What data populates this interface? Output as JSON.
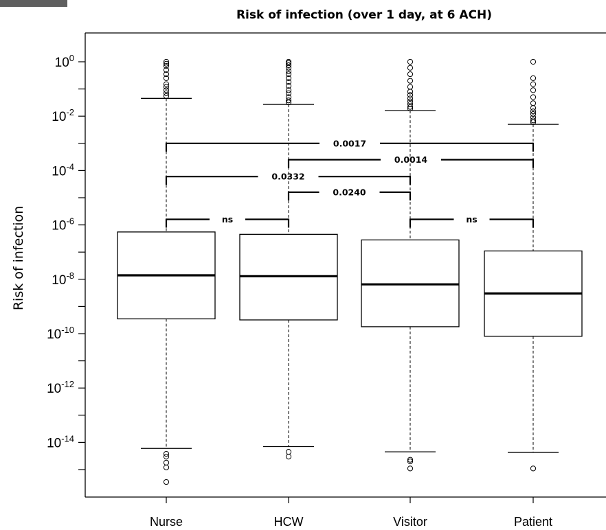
{
  "chart_data": {
    "type": "boxplot",
    "title": "Risk of infection (over 1 day, at 6 ACH)",
    "ylabel": "Risk of infection",
    "xlabel": "",
    "y_scale": "log10",
    "ylim": [
      1e-16,
      3
    ],
    "grid": false,
    "y_tick_base": "10",
    "y_tick_exponents": [
      "0",
      "-2",
      "-4",
      "-6",
      "-8",
      "-10",
      "-12",
      "-14"
    ],
    "y_minor_exponents": [
      -1,
      -3,
      -5,
      -7,
      -9,
      -11,
      -13,
      -15
    ],
    "categories": [
      "Nurse",
      "HCW",
      "Visitor",
      "Patient"
    ],
    "boxes": [
      {
        "name": "Nurse",
        "whisker_low": 6e-15,
        "q1": 3.5e-10,
        "median": 1.4e-08,
        "q3": 5.5e-07,
        "whisker_high": 0.045,
        "outliers_high": [
          1.0,
          0.85,
          0.7,
          0.5,
          0.35,
          0.25,
          0.15,
          0.12,
          0.09,
          0.07,
          0.055
        ],
        "outliers_low": [
          3.8e-15,
          3e-15,
          1.8e-15,
          1.2e-15,
          3.5e-16
        ]
      },
      {
        "name": "HCW",
        "whisker_low": 7e-15,
        "q1": 3.2e-10,
        "median": 1.3e-08,
        "q3": 4.5e-07,
        "whisker_high": 0.027,
        "outliers_high": [
          1.0,
          0.9,
          0.75,
          0.6,
          0.45,
          0.35,
          0.25,
          0.18,
          0.13,
          0.09,
          0.07,
          0.05,
          0.038,
          0.032
        ],
        "outliers_low": [
          4.5e-15,
          3e-15
        ]
      },
      {
        "name": "Visitor",
        "whisker_low": 4.5e-15,
        "q1": 1.8e-10,
        "median": 6.5e-09,
        "q3": 2.8e-07,
        "whisker_high": 0.016,
        "outliers_high": [
          1.0,
          0.6,
          0.35,
          0.2,
          0.12,
          0.08,
          0.06,
          0.045,
          0.035,
          0.028,
          0.022,
          0.019
        ],
        "outliers_low": [
          2.3e-15,
          2e-15,
          1.1e-15
        ]
      },
      {
        "name": "Patient",
        "whisker_low": 4.3e-15,
        "q1": 8e-11,
        "median": 3e-09,
        "q3": 1.1e-07,
        "whisker_high": 0.005,
        "outliers_high": [
          1.0,
          0.25,
          0.15,
          0.09,
          0.05,
          0.03,
          0.02,
          0.015,
          0.012,
          0.009,
          0.007,
          0.006
        ],
        "outliers_low": [
          1.1e-15
        ]
      }
    ],
    "significance_brackets": [
      {
        "from": "Nurse",
        "to": "Patient",
        "y": 0.001,
        "label": "0.0017"
      },
      {
        "from": "HCW",
        "to": "Patient",
        "y": 0.00025,
        "label": "0.0014"
      },
      {
        "from": "Nurse",
        "to": "Visitor",
        "y": 6e-05,
        "label": "0.0332"
      },
      {
        "from": "HCW",
        "to": "Visitor",
        "y": 1.6e-05,
        "label": "0.0240"
      },
      {
        "from": "Nurse",
        "to": "HCW",
        "y": 1.6e-06,
        "label": "ns"
      },
      {
        "from": "Visitor",
        "to": "Patient",
        "y": 1.6e-06,
        "label": "ns"
      }
    ]
  }
}
